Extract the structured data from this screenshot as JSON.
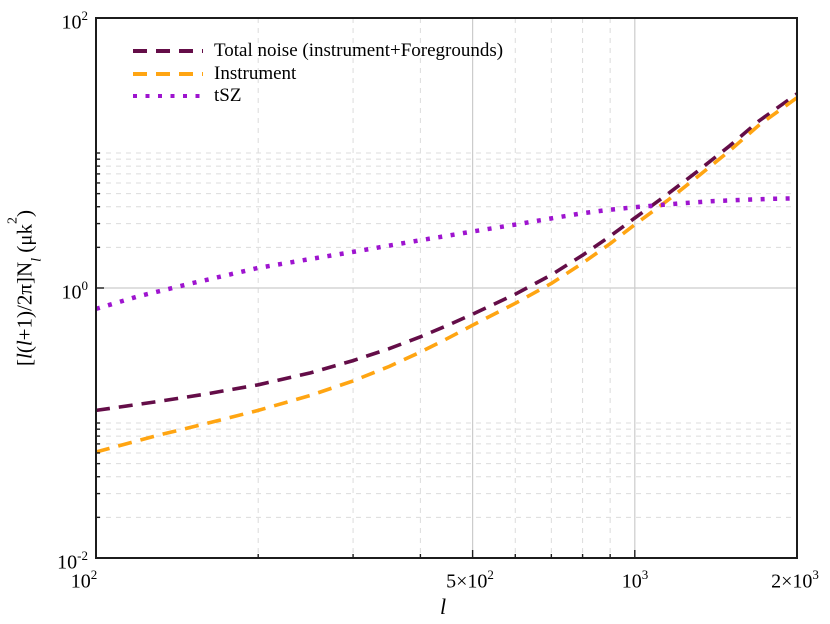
{
  "chart_data": {
    "type": "line",
    "title": "",
    "x_scale": "log",
    "y_scale": "log",
    "xlim": [
      100,
      2000
    ],
    "ylim": [
      0.01,
      100
    ],
    "background_color": "#ffffff",
    "frame_color": "#1c1c1c",
    "grid_dashed_color": "#dcdcdc",
    "grid_solid_color": "#cccccc",
    "grid": {
      "v_dashed": [
        200,
        300,
        400,
        600,
        700,
        800,
        900
      ],
      "v_solid": [
        500,
        1000
      ],
      "h_dashed": [
        0.02,
        0.03,
        0.04,
        0.05,
        0.06,
        0.07,
        0.08,
        0.09,
        0.1,
        2,
        3,
        4,
        5,
        6,
        7,
        8,
        9,
        10
      ],
      "h_solid": [
        1
      ]
    },
    "x_ticks": [
      {
        "value": 100,
        "prefix": "10",
        "sup": "2"
      },
      {
        "value": 500,
        "prefix": "5×10",
        "sup": "2"
      },
      {
        "value": 1000,
        "prefix": "10",
        "sup": "3"
      },
      {
        "value": 2000,
        "prefix": "2×10",
        "sup": "3"
      }
    ],
    "y_ticks": [
      {
        "value": 100,
        "prefix": "10",
        "sup": "2"
      },
      {
        "value": 1,
        "prefix": "10",
        "sup": "0"
      },
      {
        "value": 0.01,
        "prefix": "10",
        "sup": "-2"
      }
    ],
    "xlabel": "l",
    "ylabel": "[l(l+1)/2π]N_l (μk^2)",
    "ylabel_parts": {
      "p1": "[",
      "i1": "l",
      "p2": "(",
      "i2": "l",
      "p3": "+1)/2π]N",
      "sub": "l",
      "p4": " (μk",
      "sup": "2",
      "p5": ")"
    },
    "legend_position": "top-left",
    "series": [
      {
        "name": "Total noise (instrument+Foregrounds)",
        "color": "#640D48",
        "line_style": "dashed",
        "x": [
          100,
          130,
          160,
          200,
          250,
          300,
          350,
          400,
          450,
          500,
          600,
          700,
          800,
          900,
          1000,
          1150,
          1300,
          1500,
          1700,
          2000
        ],
        "y": [
          0.124,
          0.144,
          0.164,
          0.192,
          0.235,
          0.29,
          0.355,
          0.435,
          0.53,
          0.64,
          0.9,
          1.25,
          1.75,
          2.42,
          3.3,
          4.95,
          7.2,
          11.3,
          17.3,
          27.4
        ]
      },
      {
        "name": "Instrument",
        "color": "#FFA512",
        "line_style": "dashed",
        "x": [
          100,
          130,
          160,
          200,
          250,
          300,
          350,
          400,
          450,
          500,
          600,
          700,
          800,
          900,
          1000,
          1150,
          1300,
          1500,
          1700,
          2000
        ],
        "y": [
          0.061,
          0.081,
          0.099,
          0.124,
          0.16,
          0.205,
          0.262,
          0.335,
          0.425,
          0.53,
          0.77,
          1.08,
          1.53,
          2.13,
          2.95,
          4.45,
          6.55,
          10.4,
          16.1,
          25.7
        ]
      },
      {
        "name": "tSZ",
        "color": "#9E14CF",
        "line_style": "dotted",
        "x": [
          100,
          120,
          150,
          200,
          250,
          300,
          350,
          400,
          450,
          500,
          600,
          700,
          800,
          900,
          1000,
          1200,
          1400,
          1600,
          1800,
          2000
        ],
        "y": [
          0.7,
          0.87,
          1.08,
          1.41,
          1.64,
          1.85,
          2.06,
          2.26,
          2.44,
          2.62,
          2.95,
          3.28,
          3.58,
          3.8,
          3.97,
          4.22,
          4.4,
          4.5,
          4.58,
          4.62
        ]
      }
    ]
  }
}
